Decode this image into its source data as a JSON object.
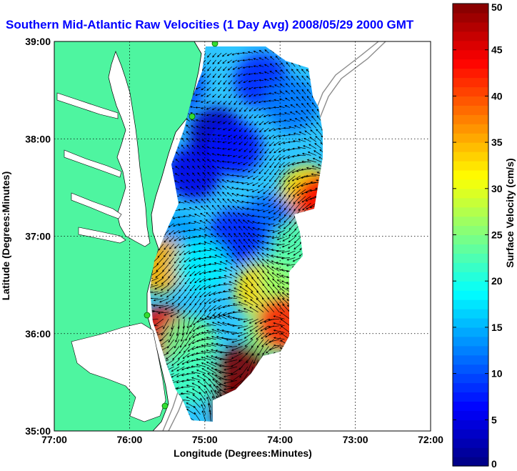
{
  "chart_data": {
    "type": "heatmap",
    "title": "Southern Mid-Atlantic Raw Velocities (1 Day Avg) 2008/05/29 2000 GMT",
    "xlabel": "Longitude (Degrees:Minutes)",
    "ylabel": "Latitude (Degrees:Minutes)",
    "xlim": [
      -77,
      -72
    ],
    "ylim": [
      35,
      39
    ],
    "x_ticks": [
      -77,
      -76,
      -75,
      -74,
      -73,
      -72
    ],
    "x_tick_labels": [
      "77:00",
      "76:00",
      "75:00",
      "74:00",
      "73:00",
      "72:00"
    ],
    "y_ticks": [
      35,
      36,
      37,
      38,
      39
    ],
    "y_tick_labels": [
      "35:00",
      "36:00",
      "37:00",
      "38:00",
      "39:00"
    ],
    "grid": true,
    "colorbar": {
      "label": "Surface Velocity (cm/s)",
      "min": 0,
      "max": 50,
      "ticks": [
        0,
        5,
        10,
        15,
        20,
        25,
        30,
        35,
        40,
        45,
        50
      ],
      "tick_labels": [
        "0",
        "5",
        "10",
        "15",
        "20",
        "25",
        "30",
        "35",
        "40",
        "45",
        "50"
      ],
      "levels": 50
    },
    "land_color": "#4ef5a0",
    "velocity_field": {
      "lon_range": [
        -75.9,
        -73.3
      ],
      "lat_range": [
        35.1,
        38.95
      ],
      "blobs": [
        {
          "lon": -75.35,
          "lat": 38.55,
          "v": 10
        },
        {
          "lon": -74.85,
          "lat": 38.05,
          "v": 3
        },
        {
          "lon": -75.15,
          "lat": 37.65,
          "v": 5
        },
        {
          "lon": -74.6,
          "lat": 37.9,
          "v": 7
        },
        {
          "lon": -74.25,
          "lat": 38.6,
          "v": 8
        },
        {
          "lon": -73.85,
          "lat": 38.35,
          "v": 12
        },
        {
          "lon": -73.65,
          "lat": 37.45,
          "v": 33
        },
        {
          "lon": -73.45,
          "lat": 37.35,
          "v": 44
        },
        {
          "lon": -74.15,
          "lat": 37.15,
          "v": 11
        },
        {
          "lon": -74.6,
          "lat": 37.0,
          "v": 8
        },
        {
          "lon": -75.35,
          "lat": 36.95,
          "v": 14
        },
        {
          "lon": -75.6,
          "lat": 36.7,
          "v": 35
        },
        {
          "lon": -75.05,
          "lat": 36.7,
          "v": 18
        },
        {
          "lon": -74.25,
          "lat": 36.45,
          "v": 33
        },
        {
          "lon": -73.9,
          "lat": 36.55,
          "v": 26
        },
        {
          "lon": -73.75,
          "lat": 36.9,
          "v": 23
        },
        {
          "lon": -74.1,
          "lat": 36.05,
          "v": 26
        },
        {
          "lon": -73.95,
          "lat": 36.1,
          "v": 42
        },
        {
          "lon": -75.55,
          "lat": 36.0,
          "v": 45
        },
        {
          "lon": -75.2,
          "lat": 35.9,
          "v": 24
        },
        {
          "lon": -75.2,
          "lat": 35.55,
          "v": 22
        },
        {
          "lon": -74.5,
          "lat": 35.6,
          "v": 50
        },
        {
          "lon": -74.55,
          "lat": 35.25,
          "v": 50
        },
        {
          "lon": -74.05,
          "lat": 35.4,
          "v": 48
        }
      ]
    }
  }
}
